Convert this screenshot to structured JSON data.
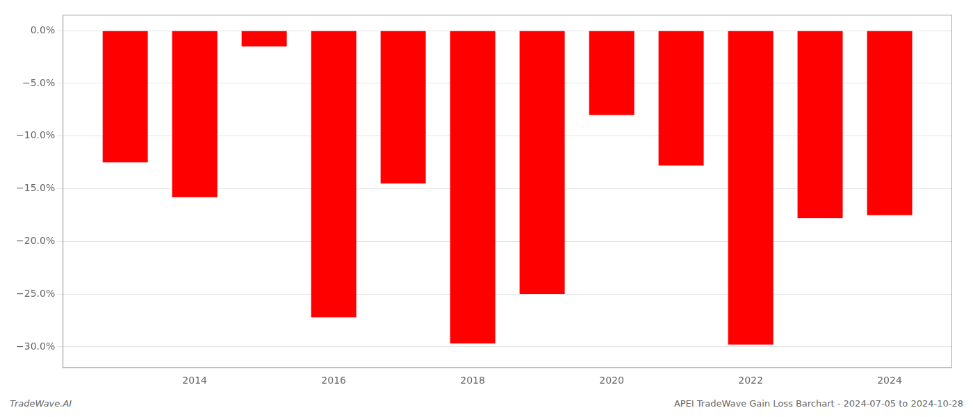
{
  "chart_data": {
    "type": "bar",
    "x": [
      2013,
      2014,
      2015,
      2016,
      2017,
      2018,
      2019,
      2020,
      2021,
      2022,
      2023,
      2024
    ],
    "values": [
      -12.5,
      -15.8,
      -1.5,
      -27.2,
      -14.5,
      -29.7,
      -25.0,
      -8.0,
      -12.8,
      -29.8,
      -17.8,
      -17.5
    ],
    "color": "#ff0000",
    "xlim": [
      2012.1,
      2024.9
    ],
    "xticks": [
      2014,
      2016,
      2018,
      2020,
      2022,
      2024
    ],
    "ylim": [
      -32,
      1.5
    ],
    "yticks": [
      {
        "value": 0.0,
        "label": "0.0%"
      },
      {
        "value": -5.0,
        "label": "−5.0%"
      },
      {
        "value": -10.0,
        "label": "−10.0%"
      },
      {
        "value": -15.0,
        "label": "−15.0%"
      },
      {
        "value": -20.0,
        "label": "−20.0%"
      },
      {
        "value": -25.0,
        "label": "−25.0%"
      },
      {
        "value": -30.0,
        "label": "−30.0%"
      }
    ],
    "grid": true,
    "annotations": [
      "TradeWave.AI",
      "APEI TradeWave Gain Loss Barchart - 2024-07-05 to 2024-10-28"
    ]
  }
}
